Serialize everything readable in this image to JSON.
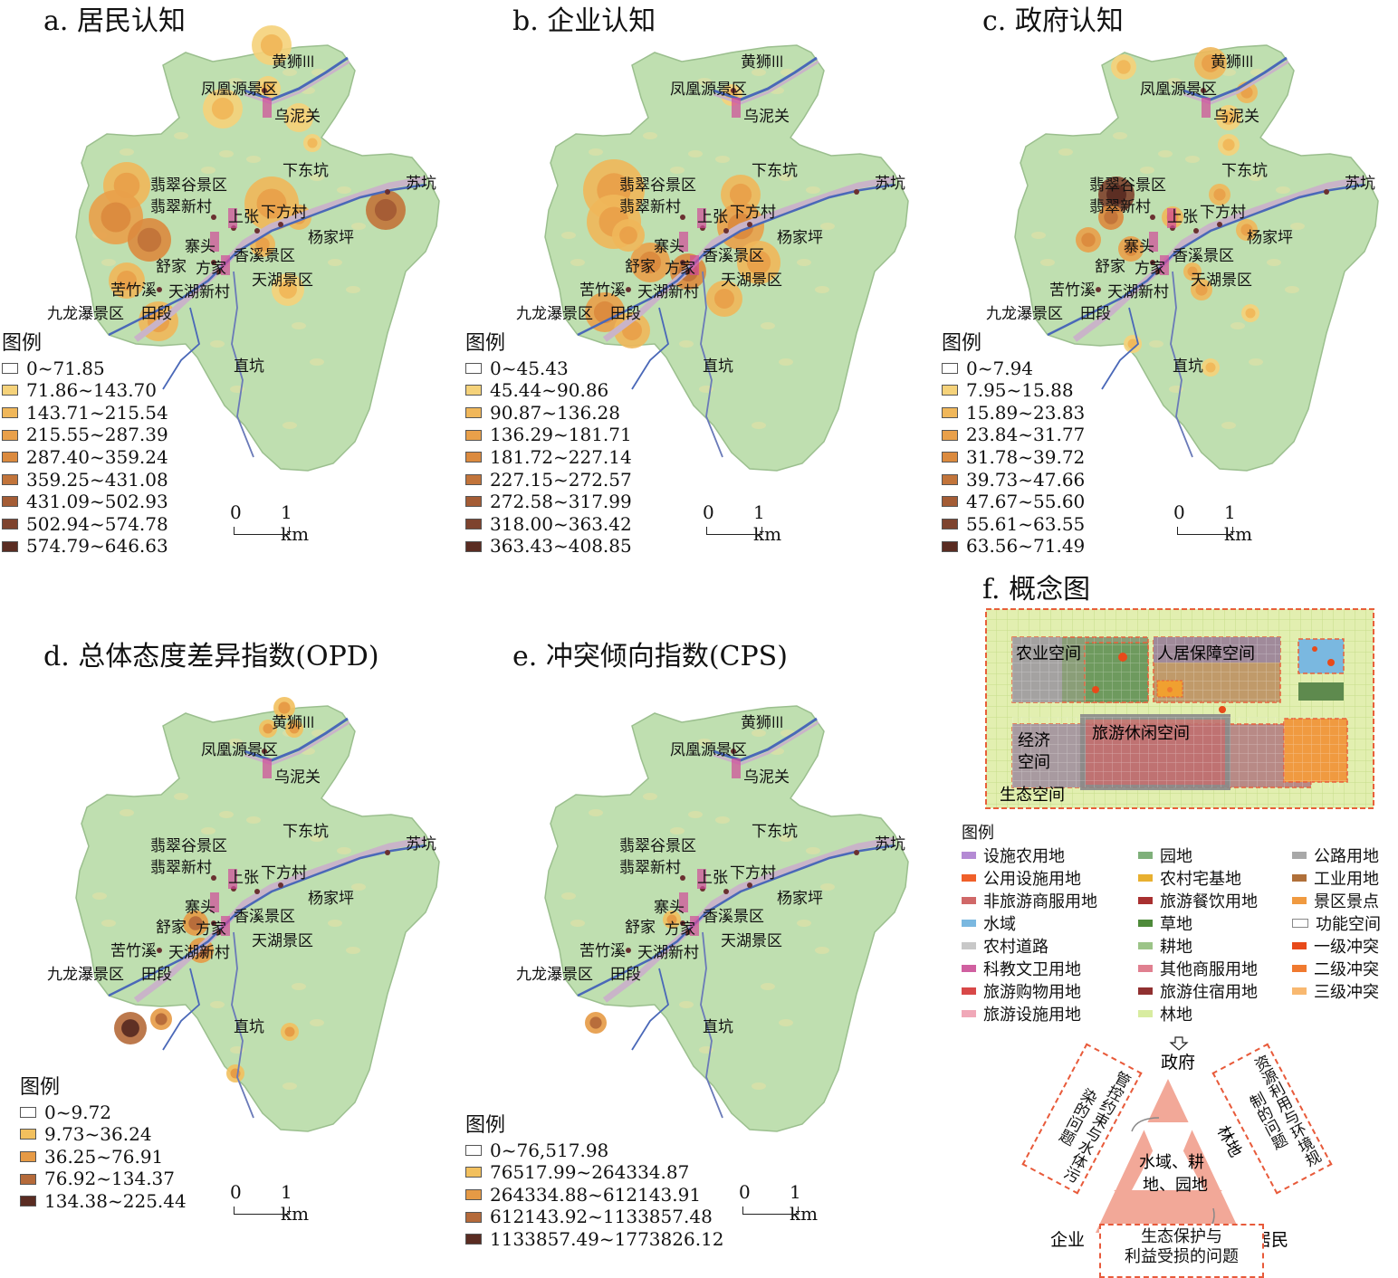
{
  "panels": [
    {
      "id": "a",
      "title": "a. 居民认知",
      "legend_title": "图例",
      "classes": [
        "0~71.85",
        "71.86~143.70",
        "143.71~215.54",
        "215.55~287.39",
        "287.40~359.24",
        "359.25~431.08",
        "431.09~502.93",
        "502.94~574.78",
        "574.79~646.63"
      ],
      "class_colors": [
        "#ffffff",
        "#f5d27a",
        "#f0b75a",
        "#e9a04a",
        "#db8a3e",
        "#c2743a",
        "#a45c35",
        "#7e432e",
        "#5a2c22"
      ]
    },
    {
      "id": "b",
      "title": "b. 企业认知",
      "legend_title": "图例",
      "classes": [
        "0~45.43",
        "45.44~90.86",
        "90.87~136.28",
        "136.29~181.71",
        "181.72~227.14",
        "227.15~272.57",
        "272.58~317.99",
        "318.00~363.42",
        "363.43~408.85"
      ],
      "class_colors": [
        "#ffffff",
        "#f5d27a",
        "#f0b75a",
        "#e9a04a",
        "#db8a3e",
        "#c2743a",
        "#a45c35",
        "#7e432e",
        "#5a2c22"
      ]
    },
    {
      "id": "c",
      "title": "c. 政府认知",
      "legend_title": "图例",
      "classes": [
        "0~7.94",
        "7.95~15.88",
        "15.89~23.83",
        "23.84~31.77",
        "31.78~39.72",
        "39.73~47.66",
        "47.67~55.60",
        "55.61~63.55",
        "63.56~71.49"
      ],
      "class_colors": [
        "#ffffff",
        "#f5d27a",
        "#f0b75a",
        "#e9a04a",
        "#db8a3e",
        "#c2743a",
        "#a45c35",
        "#7e432e",
        "#5a2c22"
      ]
    },
    {
      "id": "d",
      "title": "d. 总体态度差异指数(OPD)",
      "legend_title": "图例",
      "classes": [
        "0~9.72",
        "9.73~36.24",
        "36.25~76.91",
        "76.92~134.37",
        "134.38~225.44"
      ],
      "class_colors": [
        "#ffffff",
        "#f2c05e",
        "#e69a45",
        "#b56a3a",
        "#5a2c22"
      ]
    },
    {
      "id": "e",
      "title": "e. 冲突倾向指数(CPS)",
      "legend_title": "图例",
      "classes": [
        "0~76,517.98",
        "76517.99~264334.87",
        "264334.88~612143.91",
        "612143.92~1133857.48",
        "1133857.49~1773826.12"
      ],
      "class_colors": [
        "#ffffff",
        "#f2c05e",
        "#e69a45",
        "#b56a3a",
        "#5a2c22"
      ]
    }
  ],
  "places": {
    "huangshikeng": "黄狮Ⲽ",
    "fenghuangyuan": "凤凰源景区",
    "wunixguan": "乌泥关",
    "xiadongkeng": "下东坑",
    "sukeng": "苏坑",
    "feicuigu": "翡翠谷景区",
    "feicuixincun": "翡翠新村",
    "shangzhang": "上张",
    "xiafangcun": "下方村",
    "yangjiaping": "杨家坪",
    "zhaitou": "寨头",
    "xiangxi": "香溪景区",
    "shujia": "舒家",
    "fangjia": "方家",
    "tianhu": "天湖景区",
    "kuzhuxi": "苦竹溪",
    "tianhuxincun": "天湖新村",
    "jiulongpu": "九龙瀑景区",
    "tianduan": "田段",
    "zhikeng": "直坑"
  },
  "scale": {
    "zero": "0",
    "one": "1 km"
  },
  "concept": {
    "title": "f. 概念图",
    "nongye": "农业空间",
    "renju": "人居保障空间",
    "jingji_1": "经济",
    "jingji_2": "空间",
    "lvyou": "旅游休闲空间",
    "shengtai": "生态空间"
  },
  "f_legend": {
    "title": "图例",
    "items": [
      {
        "label": "设施农用地",
        "color": "#b48ad4"
      },
      {
        "label": "园地",
        "color": "#7fb07a"
      },
      {
        "label": "公路用地",
        "color": "#a8a8a8"
      },
      {
        "label": "公用设施用地",
        "color": "#f0602a"
      },
      {
        "label": "农村宅基地",
        "color": "#e8b030"
      },
      {
        "label": "工业用地",
        "color": "#b0703a"
      },
      {
        "label": "非旅游商服用地",
        "color": "#d06868"
      },
      {
        "label": "旅游餐饮用地",
        "color": "#a83030"
      },
      {
        "label": "景区景点",
        "color": "#f09a40"
      },
      {
        "label": "水域",
        "color": "#7ab8e0"
      },
      {
        "label": "草地",
        "color": "#4e8a3a"
      },
      {
        "label": "功能空间",
        "color": "#ffffff"
      },
      {
        "label": "农村道路",
        "color": "#c8c8c8"
      },
      {
        "label": "耕地",
        "color": "#9cc488"
      },
      {
        "label": "一级冲突",
        "color": "#e84a1a"
      },
      {
        "label": "科教文卫用地",
        "color": "#d060a0"
      },
      {
        "label": "其他商服用地",
        "color": "#e08090"
      },
      {
        "label": "二级冲突",
        "color": "#f07a30"
      },
      {
        "label": "旅游购物用地",
        "color": "#d84848"
      },
      {
        "label": "旅游住宿用地",
        "color": "#903030"
      },
      {
        "label": "三级冲突",
        "color": "#f8b870"
      },
      {
        "label": "旅游设施用地",
        "color": "#f0a8b8"
      },
      {
        "label": "林地",
        "color": "#d8eca0"
      }
    ]
  },
  "triangle": {
    "gov": "政府",
    "ent": "企业",
    "res": "居民",
    "center_1": "水域、耕",
    "center_2": "地、园地",
    "forest": "林地",
    "left_box": "管控约束与水体污染的问题",
    "right_box": "资源利用与环境规制的问题",
    "bottom_1": "生态保护与",
    "bottom_2": "利益受损的问题"
  }
}
